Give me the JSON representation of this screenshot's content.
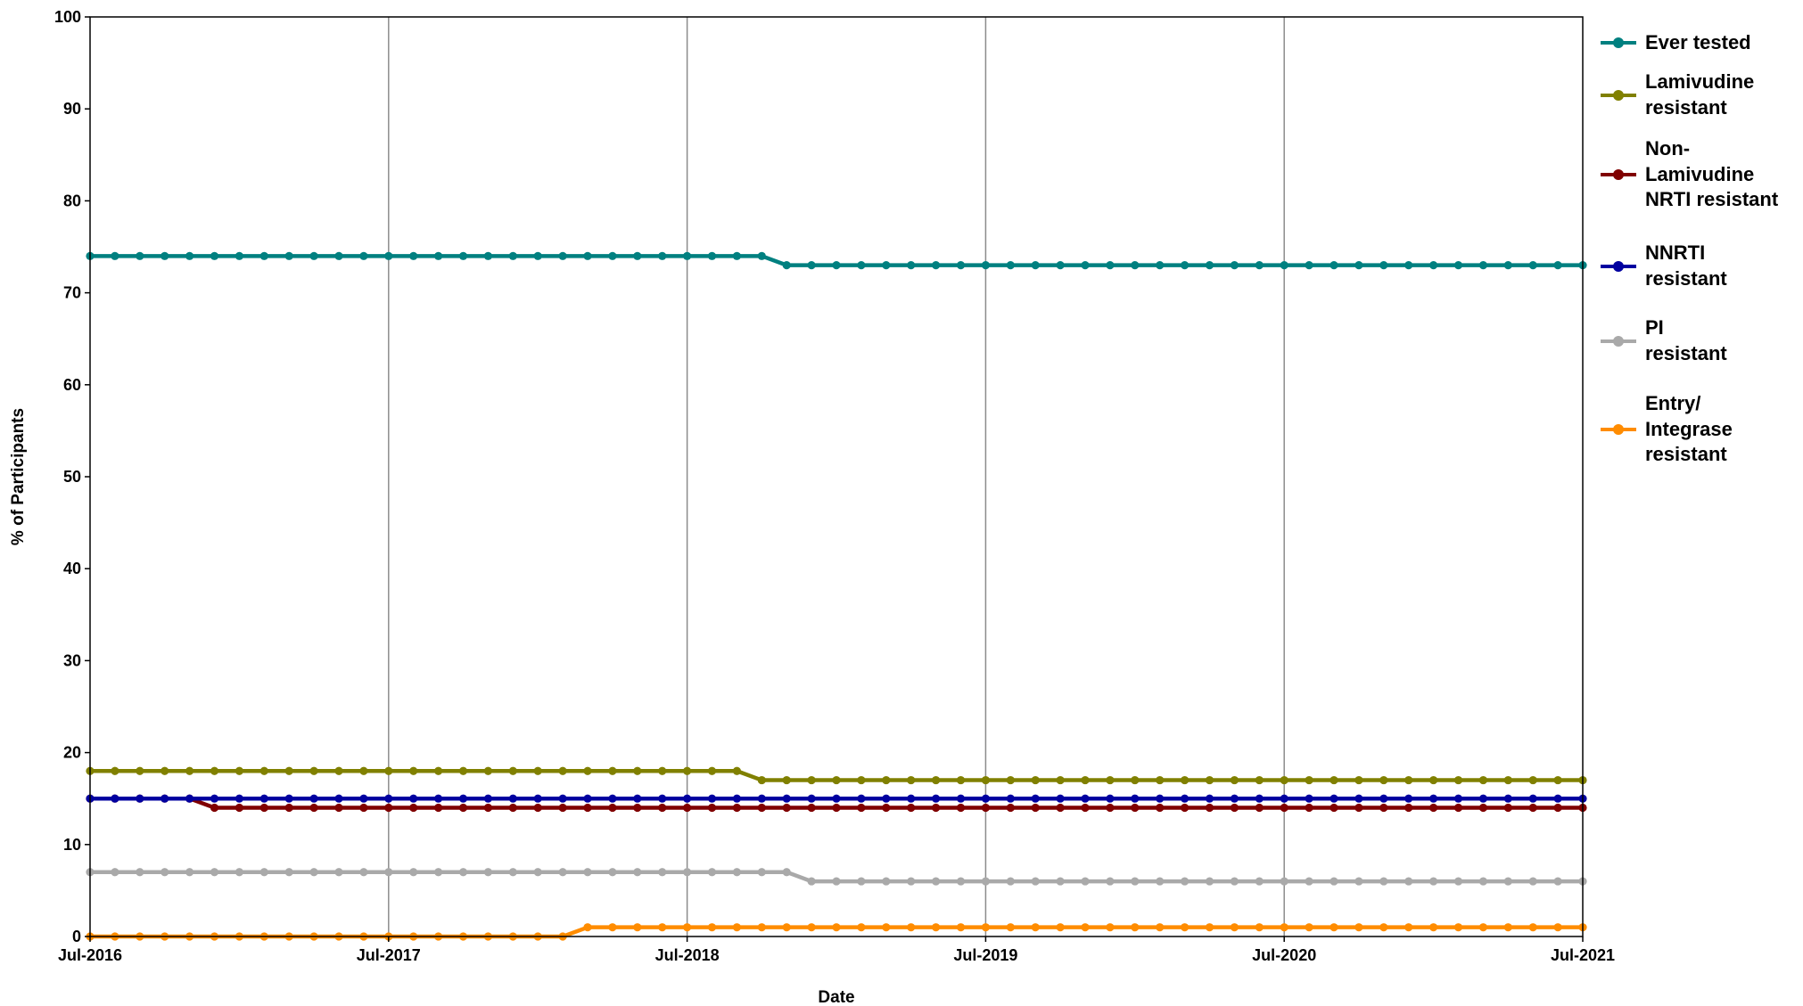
{
  "chart_data": {
    "type": "line",
    "xlabel": "Date",
    "ylabel": "% of Participants",
    "ylim": [
      0,
      100
    ],
    "yticks": [
      "0",
      "10",
      "20",
      "30",
      "40",
      "50",
      "60",
      "70",
      "80",
      "90",
      "100"
    ],
    "xlim": [
      "2016-07",
      "2021-07"
    ],
    "xticks": [
      "Jul-2016",
      "Jul-2017",
      "Jul-2018",
      "Jul-2019",
      "Jul-2020",
      "Jul-2021"
    ],
    "grid": "vertical lines at x ticks",
    "legend_position": "right",
    "series": [
      {
        "name": "Ever tested",
        "color": "#008080",
        "values": [
          [
            "2016-07",
            74
          ],
          [
            "2018-10",
            74
          ],
          [
            "2018-11",
            73
          ],
          [
            "2021-07",
            73
          ]
        ]
      },
      {
        "name": "Lamivudine\nresistant",
        "color": "#808000",
        "values": [
          [
            "2016-07",
            18
          ],
          [
            "2018-09",
            18
          ],
          [
            "2018-10",
            17
          ],
          [
            "2021-07",
            17
          ]
        ]
      },
      {
        "name": "Non-\nLamivudine\nNRTI resistant",
        "color": "#800000",
        "values": [
          [
            "2016-07",
            15
          ],
          [
            "2016-11",
            15
          ],
          [
            "2016-12",
            14
          ],
          [
            "2021-07",
            14
          ]
        ]
      },
      {
        "name": "NNRTI\nresistant",
        "color": "#0000A0",
        "values": [
          [
            "2016-07",
            15
          ],
          [
            "2021-07",
            15
          ]
        ]
      },
      {
        "name": "PI\nresistant",
        "color": "#A9A9A9",
        "values": [
          [
            "2016-07",
            7
          ],
          [
            "2018-11",
            7
          ],
          [
            "2018-12",
            6
          ],
          [
            "2021-07",
            6
          ]
        ]
      },
      {
        "name": "Entry/\nIntegrase\nresistant",
        "color": "#FF8C00",
        "values": [
          [
            "2016-07",
            0
          ],
          [
            "2018-02",
            0
          ],
          [
            "2018-03",
            1
          ],
          [
            "2021-07",
            1
          ]
        ]
      }
    ]
  }
}
